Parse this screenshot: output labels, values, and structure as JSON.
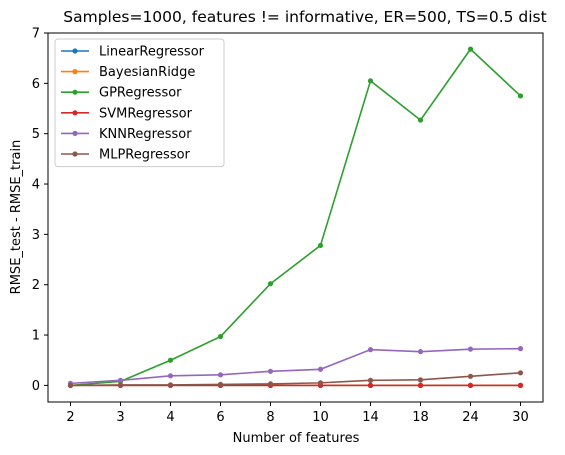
{
  "chart_data": {
    "type": "line",
    "title": "Samples=1000, features != informative, ER=500, TS=0.5 dist",
    "xlabel": "Number of features",
    "ylabel": "RMSE_test - RMSE_train",
    "categories": [
      "2",
      "3",
      "4",
      "6",
      "8",
      "10",
      "14",
      "18",
      "24",
      "30"
    ],
    "ylim": [
      -0.33,
      7.0
    ],
    "yticks": [
      0,
      1,
      2,
      3,
      4,
      5,
      6,
      7
    ],
    "grid": false,
    "legend_position": "top-left",
    "series": [
      {
        "name": "LinearRegressor",
        "color": "#1f77b4",
        "values": [
          0.0,
          0.0,
          0.0,
          0.0,
          0.0,
          0.0,
          0.0,
          0.0,
          0.0,
          0.0
        ]
      },
      {
        "name": "BayesianRidge",
        "color": "#ff7f0e",
        "values": [
          0.0,
          0.0,
          0.0,
          0.0,
          0.0,
          0.0,
          0.0,
          0.0,
          0.0,
          0.0
        ]
      },
      {
        "name": "GPRegressor",
        "color": "#2ca02c",
        "values": [
          0.0,
          0.08,
          0.5,
          0.97,
          2.02,
          2.78,
          6.05,
          5.27,
          6.68,
          5.75
        ]
      },
      {
        "name": "SVMRegressor",
        "color": "#d62728",
        "values": [
          0.0,
          0.0,
          0.0,
          0.0,
          0.0,
          0.0,
          0.0,
          0.0,
          0.0,
          0.0
        ]
      },
      {
        "name": "KNNRegressor",
        "color": "#9467bd",
        "values": [
          0.04,
          0.1,
          0.19,
          0.21,
          0.28,
          0.32,
          0.71,
          0.67,
          0.72,
          0.73
        ]
      },
      {
        "name": "MLPRegressor",
        "color": "#8c564b",
        "values": [
          0.0,
          0.01,
          0.01,
          0.02,
          0.03,
          0.05,
          0.1,
          0.11,
          0.18,
          0.25
        ]
      }
    ]
  }
}
